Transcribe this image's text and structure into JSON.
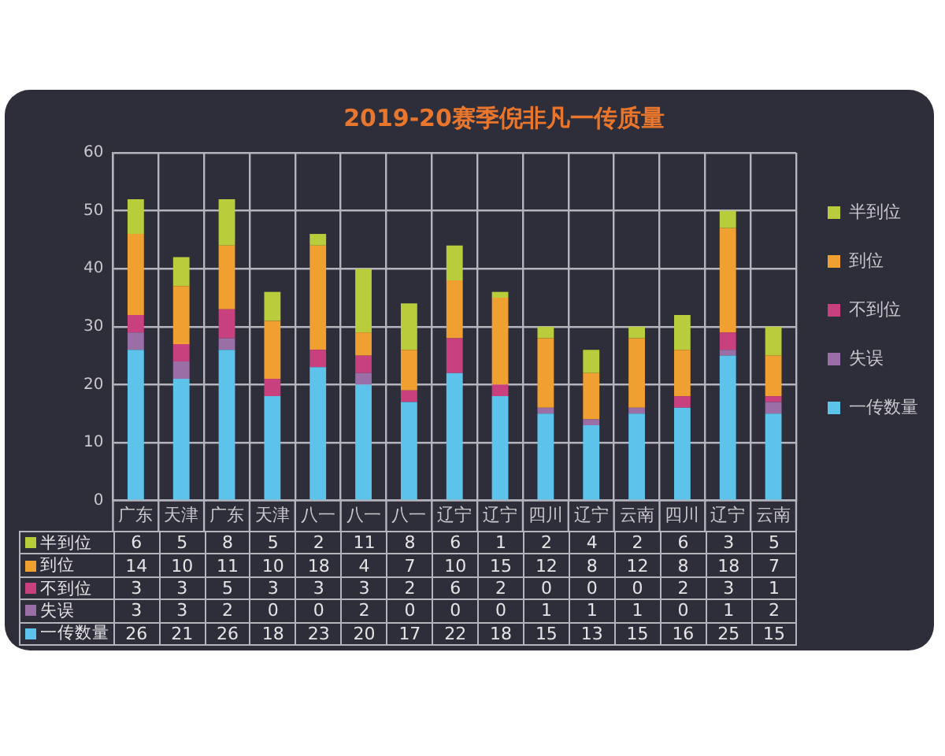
{
  "chart_data": {
    "type": "bar",
    "title": "2019-20赛季倪非凡一传质量",
    "categories": [
      "广东",
      "天津",
      "广东",
      "天津",
      "八一",
      "八一",
      "八一",
      "辽宁",
      "辽宁",
      "四川",
      "辽宁",
      "云南",
      "四川",
      "辽宁",
      "云南"
    ],
    "stacked": true,
    "series": [
      {
        "name": "一传数量",
        "color": "#5ec3ea",
        "values": [
          26,
          21,
          26,
          18,
          23,
          20,
          17,
          22,
          18,
          15,
          13,
          15,
          16,
          25,
          15
        ]
      },
      {
        "name": "失误",
        "color": "#9a6fa8",
        "values": [
          3,
          3,
          2,
          0,
          0,
          2,
          0,
          0,
          0,
          1,
          1,
          1,
          0,
          1,
          2
        ]
      },
      {
        "name": "不到位",
        "color": "#c8407e",
        "values": [
          3,
          3,
          5,
          3,
          3,
          3,
          2,
          6,
          2,
          0,
          0,
          0,
          2,
          3,
          1
        ]
      },
      {
        "name": "到位",
        "color": "#f0a030",
        "values": [
          14,
          10,
          11,
          10,
          18,
          4,
          7,
          10,
          15,
          12,
          8,
          12,
          8,
          18,
          7
        ]
      },
      {
        "name": "半到位",
        "color": "#b8cc3c",
        "values": [
          6,
          5,
          8,
          5,
          2,
          11,
          8,
          6,
          1,
          2,
          4,
          2,
          6,
          3,
          5
        ]
      }
    ],
    "ylim": [
      0,
      60
    ],
    "yticks": [
      0,
      10,
      20,
      30,
      40,
      50,
      60
    ],
    "grid": true,
    "legend": "right",
    "data_labels": true
  }
}
